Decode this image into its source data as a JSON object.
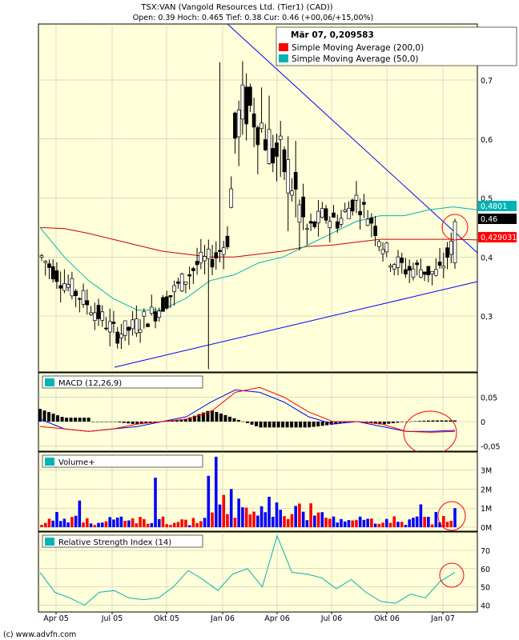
{
  "header": {
    "title": "TSX:VAN (Vangold Resources Ltd. (Tier1) (CAD))",
    "quote_line": "Open: 0.39 Hoch: 0.465 Tief: 0.38 Cur: 0.46 (+00,06/+15,00%)"
  },
  "footer": {
    "copyright": "(c) www.advfn.com"
  },
  "colors": {
    "panel_bg": "#ffffd9",
    "grid": "#b8b8b8",
    "up_candle": "#ffffff",
    "down_candle": "#000000",
    "sma200": "#cc0000",
    "sma50": "#00b4b4",
    "trendline": "#0000ff",
    "volume_up": "#0000ff",
    "volume_down": "#ff0000",
    "macd_line": "#0000ff",
    "macd_signal": "#ff0000",
    "macd_hist": "#000000",
    "rsi_line": "#00b4b4",
    "annotation_circle": "#ff0000",
    "price_badge_bg": "#000000",
    "sma200_badge_bg": "#ff0000",
    "sma50_badge_bg": "#00b4b4"
  },
  "chart_data": [
    {
      "type": "candlestick",
      "panel": "price",
      "x_ticks": [
        "Apr 05",
        "Jul 05",
        "Okt 05",
        "Jan 06",
        "Apr 06",
        "Jul 06",
        "Okt 06",
        "Jan 07"
      ],
      "y_ticks": [
        "0,3",
        "0,4",
        "0,5",
        "0,6",
        "0,7"
      ],
      "ylim": [
        0.21,
        0.76
      ],
      "tooltip": {
        "date_value": "Mär 07, 0,209583",
        "items": [
          {
            "label": "Simple Moving Average (200,0)",
            "color": "#ff0000"
          },
          {
            "label": "Simple Moving Average (50,0)",
            "color": "#00b4b4"
          }
        ]
      },
      "value_badges": [
        {
          "text": "0,4801",
          "value": 0.4801,
          "kind": "sma50"
        },
        {
          "text": "0,46",
          "value": 0.46,
          "kind": "price"
        },
        {
          "text": "0,429031",
          "value": 0.429031,
          "kind": "sma200"
        }
      ],
      "key_candles": [
        {
          "date": "Jul 05",
          "low": 0.26
        },
        {
          "date": "Jan 06",
          "low": 0.21
        },
        {
          "date": "Feb 06",
          "high": 0.73
        },
        {
          "date": "Jan 07",
          "open": 0.39,
          "high": 0.465,
          "low": 0.38,
          "close": 0.46
        }
      ],
      "sma200": [
        0.45,
        0.448,
        0.44,
        0.43,
        0.42,
        0.41,
        0.405,
        0.4,
        0.4,
        0.405,
        0.41,
        0.418,
        0.42,
        0.425,
        0.43,
        0.43,
        0.43,
        0.43,
        0.429
      ],
      "sma50": [
        0.45,
        0.4,
        0.36,
        0.33,
        0.31,
        0.31,
        0.33,
        0.36,
        0.37,
        0.39,
        0.4,
        0.42,
        0.44,
        0.46,
        0.47,
        0.47,
        0.48,
        0.485,
        0.48
      ],
      "trendlines": [
        {
          "label": "resistance",
          "from": [
            "Dez 05",
            0.77
          ],
          "to": [
            "Mär 07",
            0.4
          ]
        },
        {
          "label": "support",
          "from": [
            "Jul 05",
            0.26
          ],
          "to": [
            "Mär 07",
            0.355
          ]
        }
      ]
    },
    {
      "type": "line",
      "panel": "macd",
      "legend": "MACD (12,26,9)",
      "y_ticks": [
        "0,05",
        "0",
        "-0,05"
      ],
      "ylim": [
        -0.07,
        0.08
      ],
      "series": [
        {
          "role": "macd",
          "values": [
            0.005,
            -0.015,
            -0.02,
            -0.015,
            -0.01,
            0.0,
            0.01,
            0.04,
            0.065,
            0.06,
            0.04,
            0.01,
            -0.005,
            0.0,
            -0.01,
            -0.02,
            -0.02,
            -0.018
          ]
        },
        {
          "role": "signal",
          "values": [
            -0.01,
            -0.015,
            -0.02,
            -0.015,
            -0.005,
            0.0,
            0.005,
            0.02,
            0.06,
            0.07,
            0.05,
            0.02,
            0.0,
            0.0,
            -0.005,
            -0.02,
            -0.022,
            -0.02
          ]
        }
      ]
    },
    {
      "type": "bar",
      "panel": "volume",
      "legend": "Volume+",
      "y_ticks": [
        "3M",
        "2M",
        "1M",
        "0M"
      ],
      "ylim": [
        0,
        3.7
      ],
      "unit": "M",
      "notable_values": [
        {
          "date": "Jul 05",
          "value": 2.6
        },
        {
          "date": "Jan 06",
          "value": 2.7
        },
        {
          "date": "Feb 06",
          "value": 3.7
        },
        {
          "date": "Jan 07",
          "value": 1.0
        }
      ]
    },
    {
      "type": "line",
      "panel": "rsi",
      "legend": "Relative Strength Index (14)",
      "y_ticks": [
        "70",
        "60",
        "50",
        "40"
      ],
      "ylim": [
        37,
        80
      ],
      "values": [
        58,
        47,
        44,
        40,
        47,
        48,
        44,
        43,
        44,
        50,
        59,
        54,
        48,
        57,
        60,
        50,
        78,
        58,
        57,
        55,
        49,
        54,
        47,
        42,
        41,
        46,
        44,
        53,
        58
      ]
    }
  ]
}
